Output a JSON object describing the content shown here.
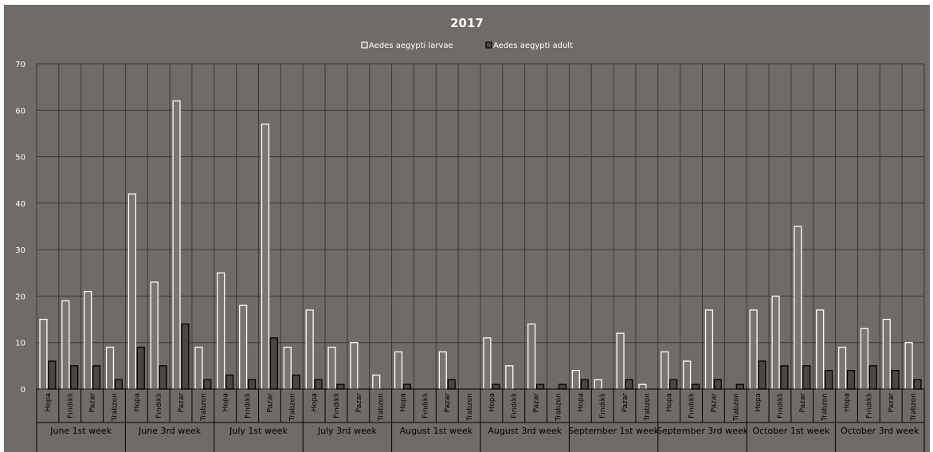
{
  "chart_data": {
    "type": "bar",
    "title": "2017",
    "ylim": [
      0,
      70
    ],
    "yticks": [
      0,
      10,
      20,
      30,
      40,
      50,
      60,
      70
    ],
    "grid": true,
    "legend_position": "top-center",
    "groups": [
      "June 1st week",
      "June 3rd week",
      "July 1st week",
      "July 3rd week",
      "August 1st week",
      "August 3rd week",
      "September 1st week",
      "September 3rd week",
      "October 1st week",
      "October 3rd week"
    ],
    "sites": [
      "Hopa",
      "Fındıklı",
      "Pazar",
      "Trabzon"
    ],
    "series": [
      {
        "name": "Aedes aegypti larvae",
        "color": "#7a7572",
        "stroke": "#ffffff",
        "values": [
          15,
          19,
          21,
          9,
          42,
          23,
          62,
          9,
          25,
          18,
          57,
          9,
          17,
          9,
          10,
          3,
          8,
          0,
          8,
          0,
          11,
          5,
          14,
          0,
          4,
          2,
          12,
          1,
          8,
          6,
          17,
          0,
          17,
          20,
          35,
          17,
          9,
          13,
          15,
          10
        ]
      },
      {
        "name": "Aedes aegypti adult",
        "color": "#4a4644",
        "stroke": "#000000",
        "values": [
          6,
          5,
          5,
          2,
          9,
          5,
          14,
          2,
          3,
          2,
          11,
          3,
          2,
          1,
          0,
          0,
          1,
          0,
          2,
          0,
          1,
          0,
          1,
          1,
          2,
          0,
          2,
          0,
          2,
          1,
          2,
          1,
          6,
          5,
          5,
          4,
          4,
          5,
          4,
          2
        ]
      }
    ]
  }
}
